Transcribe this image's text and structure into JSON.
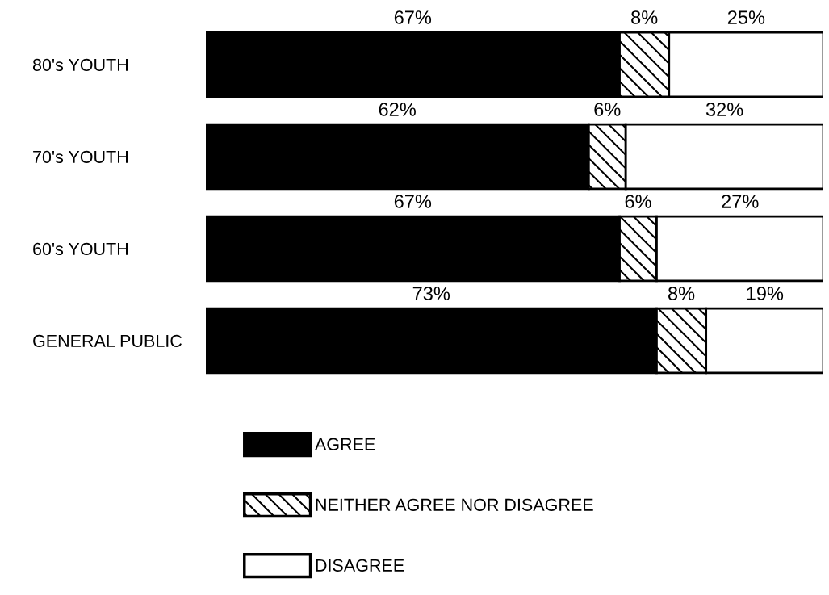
{
  "chart_data": {
    "type": "bar",
    "orientation": "horizontal",
    "stacked": true,
    "categories": [
      "80's YOUTH",
      "70's YOUTH",
      "60's YOUTH",
      "GENERAL PUBLIC"
    ],
    "series": [
      {
        "name": "AGREE",
        "color": "#000000",
        "values": [
          67,
          62,
          67,
          73
        ],
        "value_labels": [
          "67%",
          "62%",
          "67%",
          "73%"
        ]
      },
      {
        "name": "NEITHER AGREE NOR DISAGREE",
        "color": "#000000",
        "values": [
          8,
          6,
          6,
          8
        ],
        "value_labels": [
          "8%",
          "6%",
          "6%",
          "8%"
        ]
      },
      {
        "name": "DISAGREE",
        "color": "#ffffff",
        "values": [
          25,
          32,
          27,
          19
        ],
        "value_labels": [
          "25%",
          "32%",
          "27%",
          "19%"
        ]
      }
    ],
    "xlim": [
      0,
      100
    ],
    "tick_labels": "y",
    "legend": "bottom"
  }
}
